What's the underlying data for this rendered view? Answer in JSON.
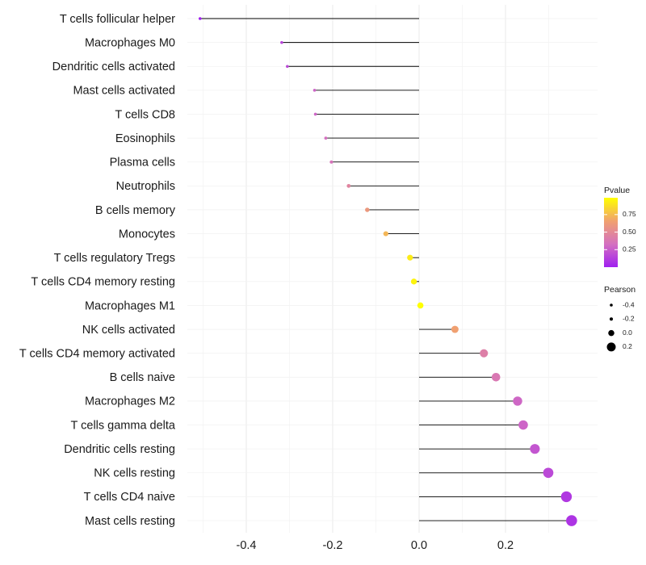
{
  "chart_data": {
    "type": "lollipop",
    "title": "",
    "xlabel": "",
    "ylabel": "",
    "xlim": [
      -0.535,
      0.372
    ],
    "x_ticks": [
      -0.4,
      -0.2,
      0.0,
      0.2
    ],
    "x_tick_labels": [
      "-0.4",
      "-0.2",
      "0.0",
      "0.2"
    ],
    "grid": true,
    "categories": [
      "T cells follicular helper",
      "Macrophages M0",
      "Dendritic cells activated",
      "Mast cells activated",
      "T cells CD8",
      "Eosinophils",
      "Plasma cells",
      "Neutrophils",
      "B cells memory",
      "Monocytes",
      "T cells regulatory  Tregs ",
      "T cells CD4 memory resting",
      "Macrophages M1",
      "NK cells activated",
      "T cells CD4 memory activated",
      "B cells naive",
      "Macrophages M2",
      "T cells gamma delta",
      "Dendritic cells resting",
      "NK cells resting",
      "T cells CD4 naive",
      "Mast cells resting"
    ],
    "pearson": [
      -0.507,
      -0.318,
      -0.305,
      -0.242,
      -0.24,
      -0.216,
      -0.203,
      -0.163,
      -0.12,
      -0.077,
      -0.021,
      -0.012,
      0.003,
      0.083,
      0.15,
      0.178,
      0.228,
      0.241,
      0.268,
      0.299,
      0.341,
      0.353
    ],
    "pvalue": [
      0.0,
      0.15,
      0.17,
      0.28,
      0.28,
      0.33,
      0.35,
      0.46,
      0.6,
      0.73,
      0.92,
      0.95,
      0.99,
      0.65,
      0.43,
      0.38,
      0.29,
      0.28,
      0.22,
      0.17,
      0.1,
      0.08
    ],
    "legend_color": {
      "title": "Pvalue",
      "ticks": [
        0.75,
        0.5,
        0.25
      ],
      "tick_labels": [
        "0.75",
        "0.50",
        "0.25"
      ],
      "range": [
        0.0,
        0.99
      ],
      "colors": [
        "#a020f0",
        "#d470c0",
        "#f0a070",
        "#ffff00"
      ]
    },
    "legend_size": {
      "title": "Pearson",
      "values": [
        -0.4,
        -0.2,
        0.0,
        0.2
      ],
      "labels": [
        "-0.4",
        "-0.2",
        "0.0",
        "0.2"
      ]
    },
    "legend_placement": "right"
  }
}
